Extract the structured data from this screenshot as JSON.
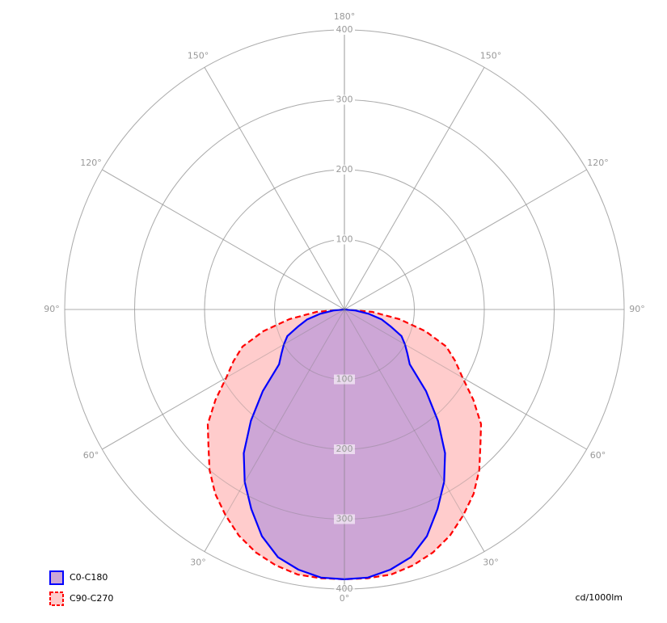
{
  "chart_data": {
    "type": "polar",
    "unit": "cd/1000lm",
    "rlim": [
      0,
      400
    ],
    "rticks": [
      100,
      200,
      300,
      400
    ],
    "angle_ticks": [
      {
        "value": 0,
        "label": "0°"
      },
      {
        "value": 30,
        "label": "30°"
      },
      {
        "value": 60,
        "label": "60°"
      },
      {
        "value": 90,
        "label": "90°"
      },
      {
        "value": 120,
        "label": "120°"
      },
      {
        "value": 150,
        "label": "150°"
      },
      {
        "value": 180,
        "label": "180°"
      }
    ],
    "x": [
      -90,
      -85,
      -80,
      -75,
      -70,
      -65,
      -60,
      -55,
      -50,
      -45,
      -40,
      -35,
      -30,
      -25,
      -20,
      -15,
      -10,
      -5,
      0,
      5,
      10,
      15,
      20,
      25,
      30,
      35,
      40,
      45,
      50,
      55,
      60,
      65,
      70,
      75,
      80,
      85,
      90
    ],
    "series": [
      {
        "name": "C90-C270",
        "color": "#ff0000",
        "fill": "#ffcccc",
        "dashed": true,
        "values": [
          0,
          40,
          80,
          120,
          155,
          175,
          195,
          225,
          255,
          275,
          300,
          322,
          340,
          357,
          370,
          379,
          385,
          386,
          386,
          386,
          385,
          379,
          370,
          357,
          340,
          322,
          300,
          275,
          255,
          225,
          195,
          175,
          155,
          120,
          80,
          40,
          0
        ]
      },
      {
        "name": "C0-C180",
        "color": "#0000ff",
        "fill": "#cda6d6",
        "dashed": false,
        "values": [
          0,
          15,
          35,
          55,
          70,
          90,
          100,
          110,
          122,
          165,
          208,
          251,
          285,
          315,
          345,
          367,
          378,
          385,
          386,
          385,
          378,
          367,
          345,
          315,
          285,
          251,
          208,
          165,
          122,
          110,
          100,
          90,
          70,
          55,
          35,
          15,
          0
        ]
      }
    ]
  }
}
